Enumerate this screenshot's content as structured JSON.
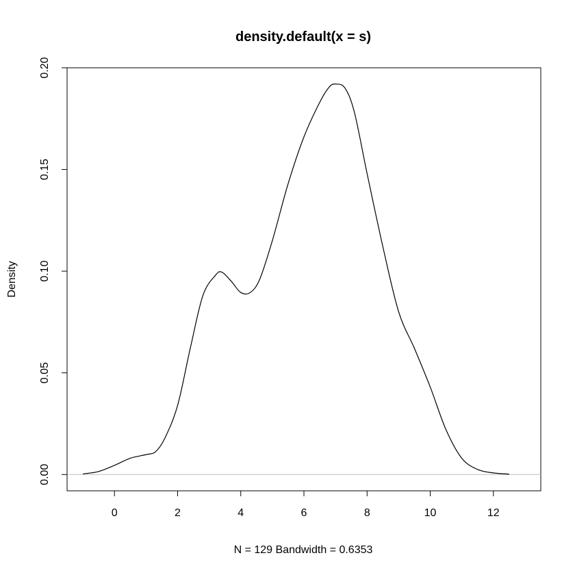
{
  "chart_data": {
    "type": "line",
    "title": "density.default(x = s)",
    "xlabel": "N = 129   Bandwidth = 0.6353",
    "ylabel": "Density",
    "xlim": [
      -1.5,
      13.5
    ],
    "ylim": [
      -0.008,
      0.2
    ],
    "xticks": [
      0,
      2,
      4,
      6,
      8,
      10,
      12
    ],
    "xtick_labels": [
      "0",
      "2",
      "4",
      "6",
      "8",
      "10",
      "12"
    ],
    "yticks": [
      0.0,
      0.05,
      0.1,
      0.15,
      0.2
    ],
    "ytick_labels": [
      "0.00",
      "0.05",
      "0.10",
      "0.15",
      "0.20"
    ],
    "baseline": {
      "y": 0,
      "color": "#bebebe"
    },
    "grid": false,
    "series": [
      {
        "color": "#000000",
        "x": [
          -1.0,
          -0.5,
          0.0,
          0.5,
          1.0,
          1.3,
          1.6,
          2.0,
          2.4,
          2.8,
          3.2,
          3.4,
          3.7,
          4.0,
          4.3,
          4.6,
          5.0,
          5.5,
          6.0,
          6.5,
          6.8,
          7.0,
          7.3,
          7.6,
          8.0,
          8.5,
          9.0,
          9.5,
          10.0,
          10.5,
          11.0,
          11.5,
          12.0,
          12.5
        ],
        "y": [
          0.0003,
          0.0015,
          0.0045,
          0.008,
          0.0098,
          0.0112,
          0.018,
          0.034,
          0.062,
          0.088,
          0.098,
          0.0995,
          0.095,
          0.0895,
          0.0895,
          0.096,
          0.115,
          0.143,
          0.166,
          0.183,
          0.1905,
          0.192,
          0.19,
          0.178,
          0.148,
          0.112,
          0.08,
          0.062,
          0.043,
          0.022,
          0.008,
          0.0025,
          0.0008,
          0.0002
        ]
      }
    ]
  }
}
